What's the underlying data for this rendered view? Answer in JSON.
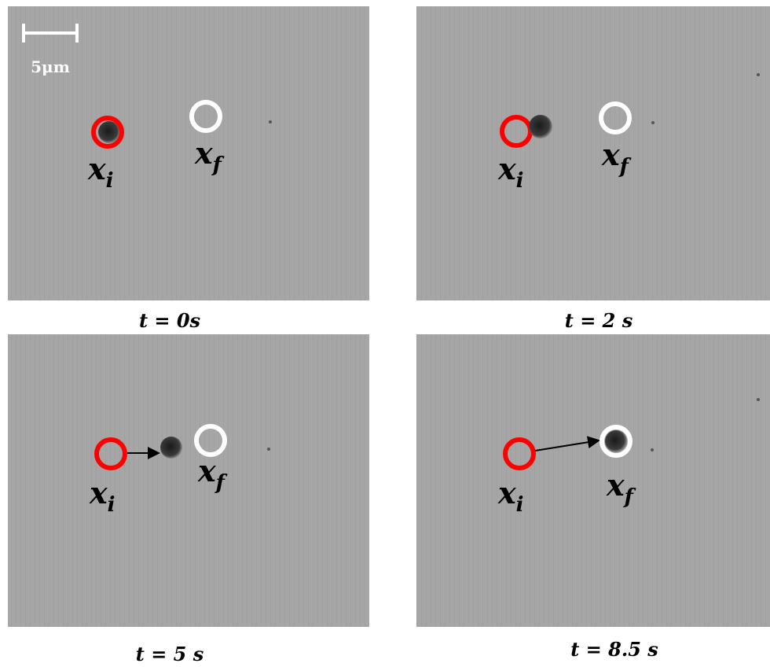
{
  "scale_bar": {
    "label": "5μm"
  },
  "panels": [
    {
      "caption": "t = 0s",
      "start_label": {
        "base": "x",
        "sub": "i"
      },
      "end_label": {
        "base": "x",
        "sub": "f"
      }
    },
    {
      "caption": "t = 2 s",
      "start_label": {
        "base": "x",
        "sub": "i"
      },
      "end_label": {
        "base": "x",
        "sub": "f"
      }
    },
    {
      "caption": "t = 5 s",
      "start_label": {
        "base": "x",
        "sub": "i"
      },
      "end_label": {
        "base": "x",
        "sub": "f"
      }
    },
    {
      "caption": "t = 8.5 s",
      "start_label": {
        "base": "x",
        "sub": "i"
      },
      "end_label": {
        "base": "x",
        "sub": "f"
      }
    }
  ]
}
